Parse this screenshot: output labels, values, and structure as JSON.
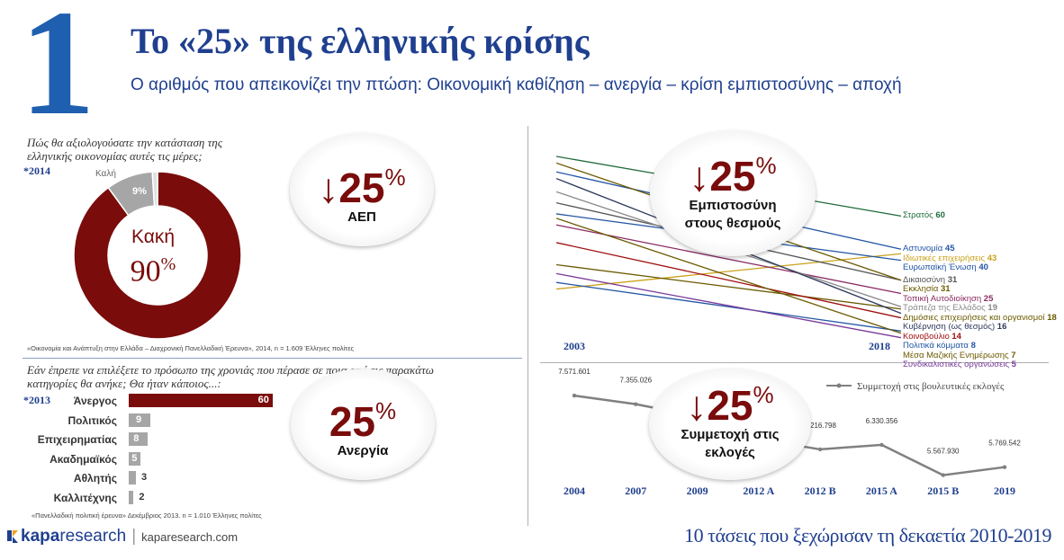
{
  "header": {
    "big_number": "1",
    "title": "Το «25» της ελληνικής κρίσης",
    "subtitle": "Ο αριθμός που απεικονίζει την πτώση: Οικονομική καθίζηση – ανεργία – κρίση εμπιστοσύνης – αποχή"
  },
  "donut": {
    "question_line1": "Πώς θα αξιολογούσατε την κατάσταση της",
    "question_line2": "ελληνικής οικονομίας αυτές τις μέρες;",
    "year": "*2014",
    "good_label": "Καλή",
    "good_value": "9%",
    "bad_label": "Κακή",
    "bad_value": "90",
    "bad_pct": "%",
    "source": "«Οικονομία και Ανάπτυξη στην Ελλάδα – Διαχρονική Πανελλαδική Έρευνα», 2014, n = 1.609 Έλληνες πολίτες",
    "colors": {
      "bad": "#7a0c0c",
      "good": "#a6a6a6",
      "other": "#e0e0e0"
    }
  },
  "bubble_gdp": {
    "arrow": "↓",
    "number": "25",
    "pct": "%",
    "label": "ΑΕΠ"
  },
  "bubble_unemployment": {
    "number": "25",
    "pct": "%",
    "label": "Ανεργία"
  },
  "bubble_trust": {
    "arrow": "↓",
    "number": "25",
    "pct": "%",
    "label_line1": "Εμπιστοσύνη",
    "label_line2": "στους θεσμούς"
  },
  "bubble_turnout": {
    "arrow": "↓",
    "number": "25",
    "pct": "%",
    "label_line1": "Συμμετοχή στις",
    "label_line2": "εκλογές"
  },
  "bars": {
    "question_line1": "Εάν έπρεπε να επιλέξετε το πρόσωπο της χρονιάς που πέρασε σε ποια από τις παρακάτω",
    "question_line2": "κατηγορίες θα ανήκε; Θα ήταν κάποιος...:",
    "year": "*2013",
    "source": "«Πανελλαδική πολιτική έρευνα» Δεκέμβριος 2013. n = 1.010 Έλληνες πολίτες"
  },
  "trust": {
    "year_start": "2003",
    "year_end": "2018"
  },
  "turnout": {
    "legend": "Συμμετοχή στις βουλευτικές εκλογές"
  },
  "footer": {
    "logo_brand": "kapa",
    "logo_rest": "research",
    "logo_url": "kaparesearch.com",
    "tagline": "10 τάσεις που ξεχώρισαν τη δεκαετία 2010-2019"
  },
  "chart_data": [
    {
      "type": "pie",
      "title": "Πώς θα αξιολογούσατε την κατάσταση της ελληνικής οικονομίας αυτές τις μέρες;",
      "categories": [
        "Κακή",
        "Καλή"
      ],
      "values": [
        90,
        9
      ]
    },
    {
      "type": "bar",
      "title": "Εάν έπρεπε να επιλέξετε το πρόσωπο της χρονιάς που πέρασε σε ποια από τις παρακάτω κατηγορίες θα ανήκε; Θα ήταν κάποιος...:",
      "categories": [
        "Άνεργος",
        "Πολιτικός",
        "Επιχειρηματίας",
        "Ακαδημαϊκός",
        "Αθλητής",
        "Καλλιτέχνης"
      ],
      "values": [
        60,
        9,
        8,
        5,
        3,
        2
      ],
      "value_labels": [
        "60",
        "9",
        "8",
        "5",
        "3",
        "2"
      ],
      "colors": [
        "#7a0c0c",
        "#a6a6a6",
        "#a6a6a6",
        "#a6a6a6",
        "#a6a6a6",
        "#a6a6a6"
      ],
      "xlim": [
        0,
        62
      ]
    },
    {
      "type": "line",
      "x": [
        "2003",
        "2018"
      ],
      "ylim": [
        0,
        100
      ],
      "series": [
        {
          "name": "Στρατός",
          "end_value": "60",
          "values": [
            87,
            60
          ],
          "color": "#1f6b3a"
        },
        {
          "name": "Αστυνομία",
          "end_value": "45",
          "values": [
            80,
            45
          ],
          "color": "#2255a4"
        },
        {
          "name": "Ιδιωτικές επιχειρήσεις",
          "end_value": "43",
          "values": [
            27,
            43
          ],
          "color": "#c9a21a"
        },
        {
          "name": "Ευρωπαϊκή Ένωση",
          "end_value": "40",
          "values": [
            61,
            40
          ],
          "color": "#2255a4"
        },
        {
          "name": "Δικαιοσύνη",
          "end_value": "31",
          "values": [
            66,
            31
          ],
          "color": "#555555"
        },
        {
          "name": "Εκκλησία",
          "end_value": "31",
          "values": [
            84,
            31
          ],
          "color": "#6b5a00"
        },
        {
          "name": "Τοπική Αυτοδιοίκηση",
          "end_value": "25",
          "values": [
            56,
            25
          ],
          "color": "#8a2b62"
        },
        {
          "name": "Τράπεζα της Ελλάδος",
          "end_value": "19",
          "values": [
            71,
            19
          ],
          "color": "#888888"
        },
        {
          "name": "Δημόσιες επιχειρήσεις και οργανισμοί",
          "end_value": "18",
          "values": [
            38,
            18
          ],
          "color": "#6b5a00"
        },
        {
          "name": "Κυβέρνηση (ως θεσμός)",
          "end_value": "16",
          "values": [
            77,
            16
          ],
          "color": "#2e3a5c"
        },
        {
          "name": "Κοινοβούλιο",
          "end_value": "14",
          "values": [
            48,
            14
          ],
          "color": "#a01010"
        },
        {
          "name": "Πολιτικά κόμματα",
          "end_value": "8",
          "values": [
            30,
            8
          ],
          "color": "#2255a4"
        },
        {
          "name": "Μέσα Μαζικής Ενημέρωσης",
          "end_value": "7",
          "values": [
            59,
            7
          ],
          "color": "#6b5a00"
        },
        {
          "name": "Συνδικαλιστικές οργανώσεις",
          "end_value": "5",
          "values": [
            34,
            5
          ],
          "color": "#7a3a9a"
        }
      ]
    },
    {
      "type": "line",
      "x": [
        "2004",
        "2007",
        "2009",
        "2012 A",
        "2012 B",
        "2015 A",
        "2015 B",
        "2019"
      ],
      "series": [
        {
          "name": "Συμμετοχή στις βουλευτικές εκλογές",
          "values": [
            7571601,
            7355026,
            7047000,
            6476000,
            6216798,
            6330356,
            5567930,
            5769542
          ],
          "value_labels": [
            "7.571.601",
            "7.355.026",
            "",
            "",
            "6.216.798",
            "6.330.356",
            "5.567.930",
            "5.769.542"
          ],
          "color": "#808080"
        }
      ],
      "ylim": [
        5400000,
        7800000
      ]
    }
  ]
}
